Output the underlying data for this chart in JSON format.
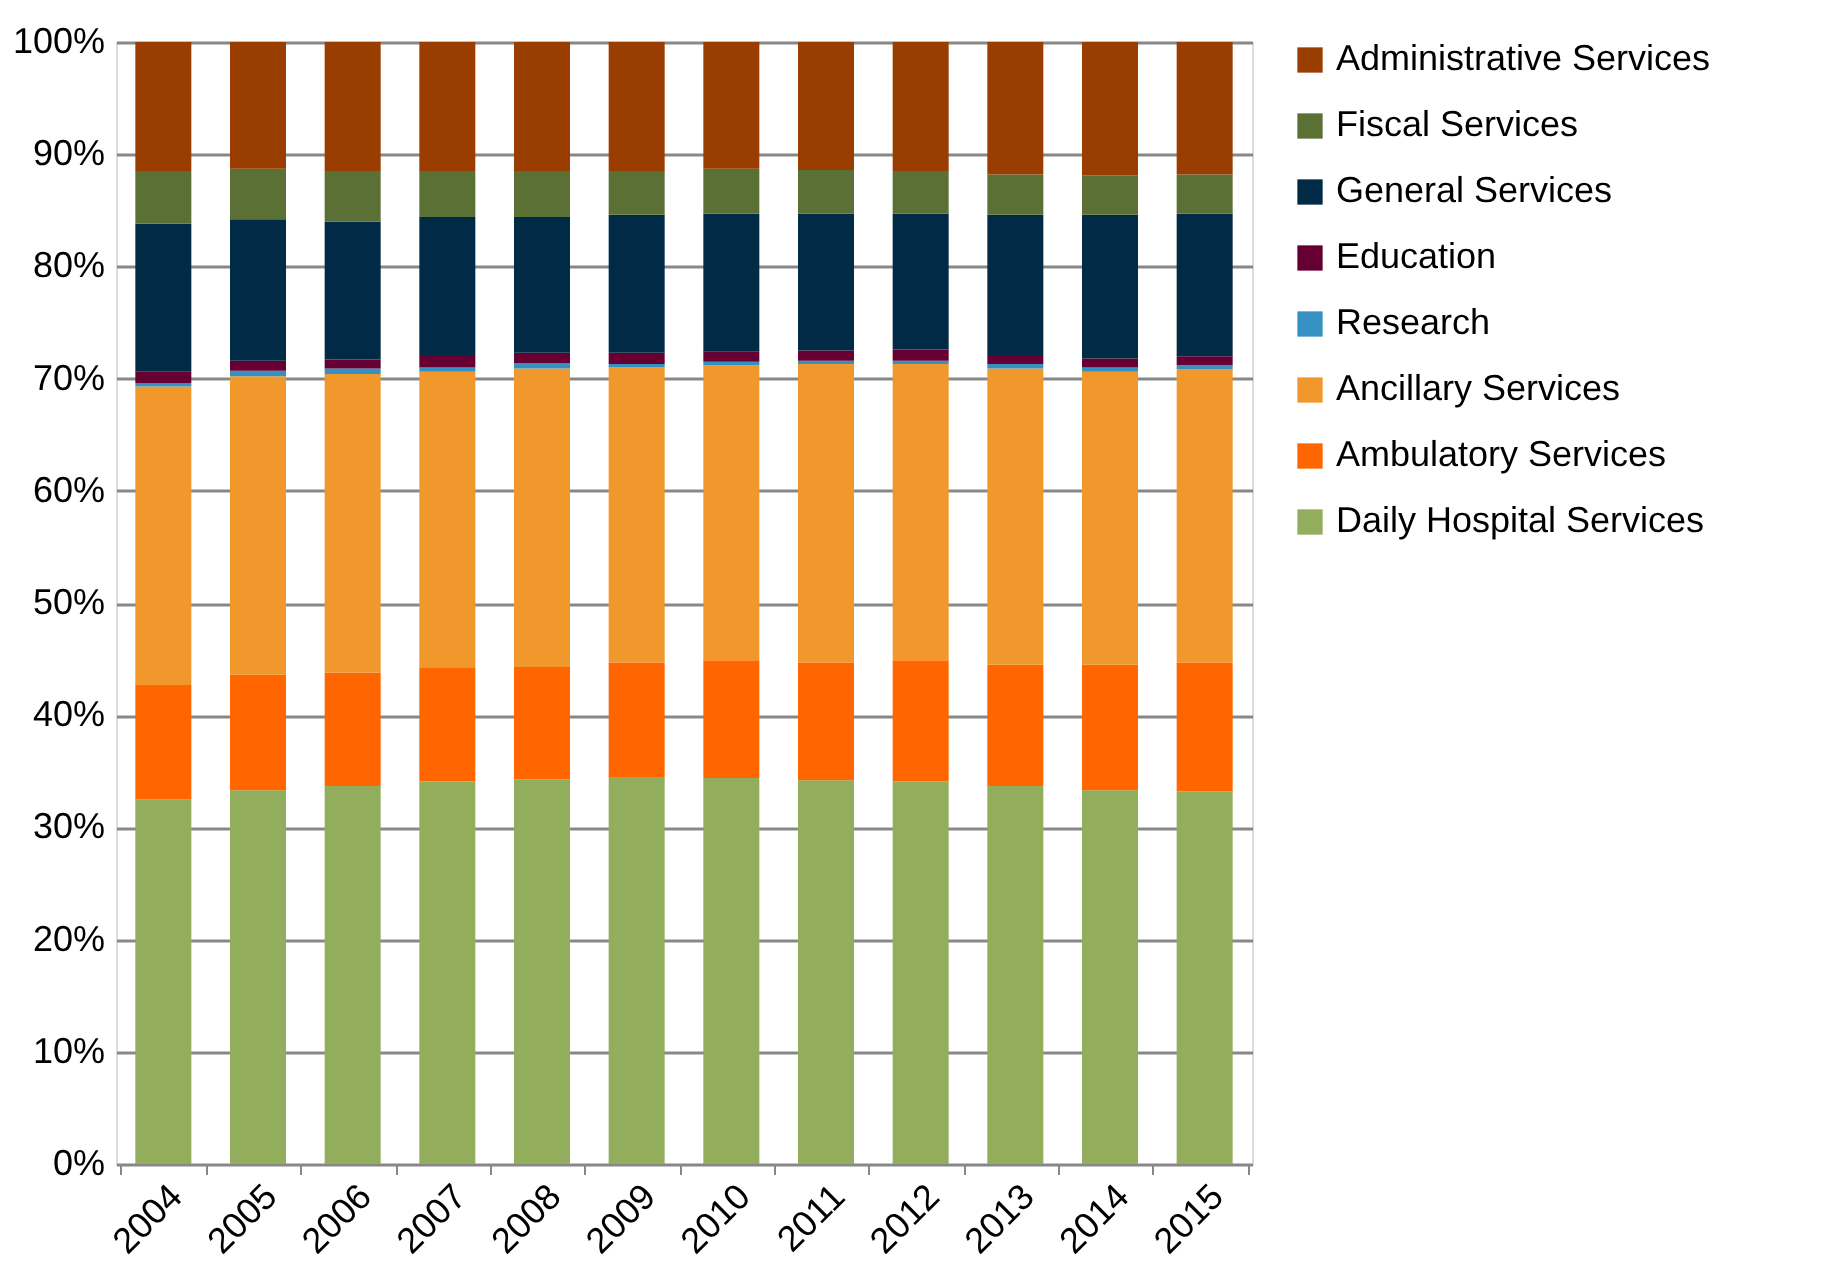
{
  "chart_data": {
    "type": "bar",
    "stacked": true,
    "categories": [
      "2004",
      "2005",
      "2006",
      "2007",
      "2008",
      "2009",
      "2010",
      "2011",
      "2012",
      "2013",
      "2014",
      "2015"
    ],
    "series": [
      {
        "name": "Daily Hospital Services",
        "color": "#92ad5c",
        "values": [
          32.5,
          33.3,
          33.7,
          34.1,
          34.3,
          34.5,
          34.4,
          34.2,
          34.1,
          33.7,
          33.3,
          33.2
        ]
      },
      {
        "name": "Ambulatory Services",
        "color": "#ff6600",
        "values": [
          10.2,
          10.3,
          10.1,
          10.1,
          10.0,
          10.2,
          10.5,
          10.5,
          10.8,
          10.8,
          11.2,
          11.5
        ]
      },
      {
        "name": "Ancillary Services",
        "color": "#f0982b",
        "values": [
          26.6,
          26.6,
          26.6,
          26.4,
          26.6,
          26.3,
          26.3,
          26.6,
          26.4,
          26.4,
          26.1,
          26.1
        ]
      },
      {
        "name": "Research",
        "color": "#3591c2",
        "values": [
          0.3,
          0.5,
          0.5,
          0.4,
          0.5,
          0.3,
          0.3,
          0.3,
          0.3,
          0.4,
          0.4,
          0.4
        ]
      },
      {
        "name": "Education",
        "color": "#660033",
        "values": [
          1.0,
          0.9,
          0.8,
          1.1,
          0.9,
          1.0,
          0.9,
          0.9,
          1.0,
          0.8,
          0.8,
          0.8
        ]
      },
      {
        "name": "General Services",
        "color": "#002a46",
        "values": [
          13.2,
          12.6,
          12.3,
          12.3,
          12.1,
          12.3,
          12.3,
          12.2,
          12.1,
          12.5,
          12.8,
          12.7
        ]
      },
      {
        "name": "Fiscal Services",
        "color": "#5a7034",
        "values": [
          4.7,
          4.5,
          4.5,
          4.1,
          4.1,
          3.9,
          4.0,
          3.9,
          3.8,
          3.6,
          3.5,
          3.5
        ]
      },
      {
        "name": "Administrative Services",
        "color": "#993d00",
        "values": [
          11.5,
          11.3,
          11.5,
          11.5,
          11.5,
          11.5,
          11.3,
          11.4,
          11.5,
          11.8,
          11.9,
          11.8
        ]
      }
    ],
    "ylim": [
      0,
      100
    ],
    "yticks": [
      {
        "value": 0,
        "label": "0%"
      },
      {
        "value": 10,
        "label": "10%"
      },
      {
        "value": 20,
        "label": "20%"
      },
      {
        "value": 30,
        "label": "30%"
      },
      {
        "value": 40,
        "label": "40%"
      },
      {
        "value": 50,
        "label": "50%"
      },
      {
        "value": 60,
        "label": "60%"
      },
      {
        "value": 70,
        "label": "70%"
      },
      {
        "value": 80,
        "label": "80%"
      },
      {
        "value": 90,
        "label": "90%"
      },
      {
        "value": 100,
        "label": "100%"
      }
    ],
    "grid": "y",
    "legend": "right"
  }
}
